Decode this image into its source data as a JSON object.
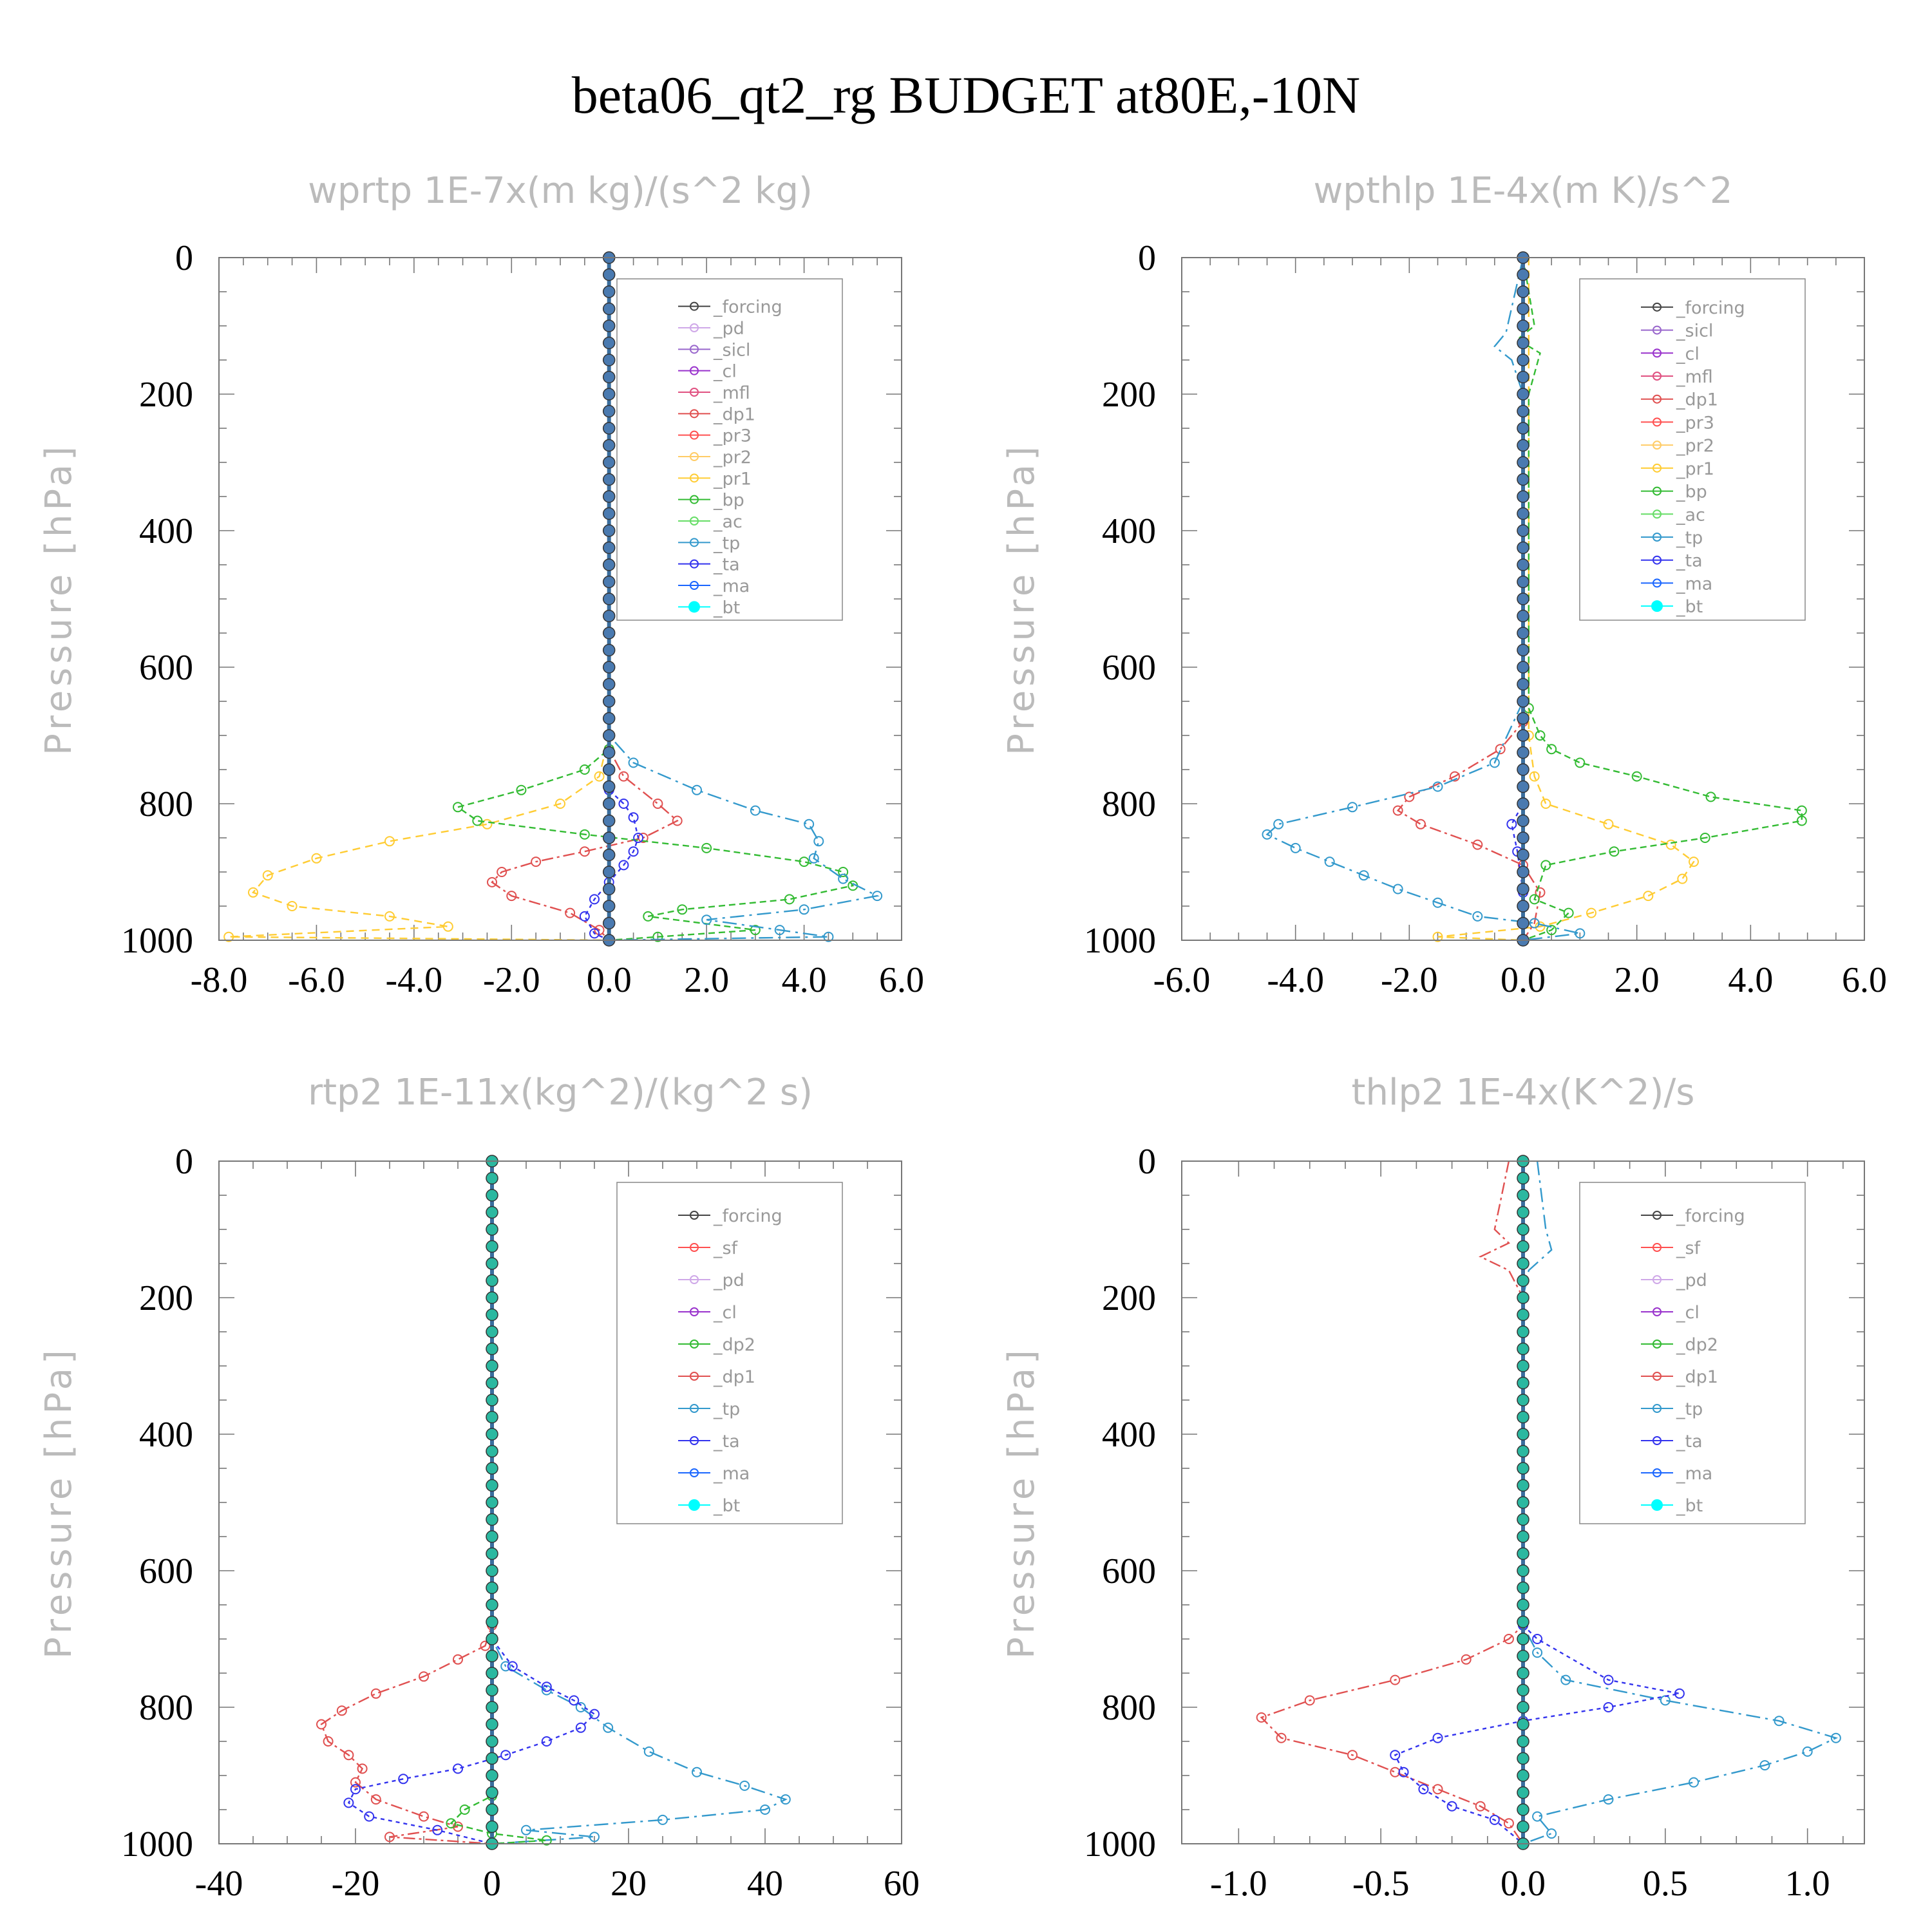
{
  "title": "beta06_qt2_rg  BUDGET at80E,-10N",
  "colors": {
    "forcing": "#444444",
    "pd": "#cfa8e8",
    "sicl": "#9966cc",
    "cl": "#9932cc",
    "mfl": "#e05080",
    "dp1": "#e05050",
    "pr3": "#ff5050",
    "pr2": "#ffcc66",
    "pr1": "#ffcc33",
    "bp": "#33bb33",
    "ac": "#66dd66",
    "tp": "#3399cc",
    "ta": "#3333ee",
    "ma": "#1a66ff",
    "bt": "#00ffff",
    "sf": "#ff5050",
    "dp2": "#33bb33"
  },
  "chart_data": [
    {
      "type": "line",
      "title": "wprtp   1E-7x(m kg)/(s^2 kg)",
      "ylabel": "Pressure [hPa]",
      "xlim": [
        -8,
        6
      ],
      "ylim": [
        0,
        1000
      ],
      "xticks": [
        "-8.0",
        "-6.0",
        "-4.0",
        "-2.0",
        "0.0",
        "2.0",
        "4.0",
        "6.0"
      ],
      "yticks": [
        "0",
        "200",
        "400",
        "600",
        "800",
        "1000"
      ],
      "legend": [
        "_forcing",
        "_pd",
        "_sicl",
        "_cl",
        "_mfl",
        "_dp1",
        "_pr3",
        "_pr2",
        "_pr1",
        "_bp",
        "_ac",
        "_tp",
        "_ta",
        "_ma",
        "_bt"
      ],
      "series": [
        {
          "name": "_pr1",
          "x": [
            0,
            0,
            -0.2,
            -1.0,
            -2.5,
            -4.5,
            -6.0,
            -7.0,
            -7.3,
            -6.5,
            -4.5,
            -3.3,
            -7.8,
            0
          ],
          "y": [
            0,
            700,
            760,
            800,
            830,
            855,
            880,
            905,
            930,
            950,
            965,
            980,
            995,
            1000
          ]
        },
        {
          "name": "_dp1",
          "x": [
            0,
            0,
            0.3,
            1.0,
            1.4,
            0.7,
            -0.5,
            -1.5,
            -2.2,
            -2.4,
            -2.0,
            -0.8,
            -0.2,
            0
          ],
          "y": [
            0,
            720,
            760,
            800,
            825,
            850,
            870,
            885,
            900,
            915,
            935,
            960,
            985,
            1000
          ]
        },
        {
          "name": "_bp",
          "x": [
            0,
            0,
            -0.5,
            -1.8,
            -3.1,
            -2.7,
            -0.5,
            2.0,
            4.0,
            4.8,
            5.0,
            3.7,
            1.5,
            0.8,
            3.0,
            1.0,
            0
          ],
          "y": [
            0,
            720,
            750,
            780,
            805,
            825,
            845,
            865,
            885,
            900,
            920,
            940,
            955,
            965,
            985,
            995,
            1000
          ]
        },
        {
          "name": "_tp",
          "x": [
            0,
            0,
            0.5,
            1.8,
            3.0,
            4.1,
            4.3,
            4.2,
            4.8,
            5.5,
            4.0,
            2.0,
            3.5,
            4.5,
            0
          ],
          "y": [
            0,
            700,
            740,
            780,
            810,
            830,
            855,
            880,
            910,
            935,
            955,
            970,
            985,
            995,
            1000
          ]
        },
        {
          "name": "_ta",
          "x": [
            0,
            0,
            0.3,
            0.5,
            0.6,
            0.5,
            0.3,
            0.0,
            -0.3,
            -0.5,
            -0.3,
            0
          ],
          "y": [
            0,
            780,
            800,
            820,
            850,
            870,
            890,
            915,
            940,
            965,
            990,
            1000
          ]
        },
        {
          "name": "_bt",
          "x": [
            0,
            0
          ],
          "y": [
            0,
            1000
          ]
        }
      ]
    },
    {
      "type": "line",
      "title": "wpthlp   1E-4x(m K)/s^2",
      "ylabel": "Pressure [hPa]",
      "xlim": [
        -6,
        6
      ],
      "ylim": [
        0,
        1000
      ],
      "xticks": [
        "-6.0",
        "-4.0",
        "-2.0",
        "0.0",
        "2.0",
        "4.0",
        "6.0"
      ],
      "yticks": [
        "0",
        "200",
        "400",
        "600",
        "800",
        "1000"
      ],
      "legend": [
        "_forcing",
        "_sicl",
        "_cl",
        "_mfl",
        "_dp1",
        "_pr3",
        "_pr2",
        "_pr1",
        "_bp",
        "_ac",
        "_tp",
        "_ta",
        "_ma",
        "_bt"
      ],
      "series": [
        {
          "name": "_pr1",
          "x": [
            0.1,
            0.1,
            0.2,
            0.4,
            1.5,
            2.6,
            3.0,
            2.8,
            2.2,
            1.2,
            0.3,
            -1.5,
            0
          ],
          "y": [
            0,
            700,
            760,
            800,
            830,
            860,
            885,
            910,
            935,
            960,
            980,
            995,
            1000
          ]
        },
        {
          "name": "_dp1",
          "x": [
            0,
            0,
            -0.4,
            -1.2,
            -2.0,
            -2.2,
            -1.8,
            -0.8,
            0.0,
            0.3,
            0.2,
            0
          ],
          "y": [
            0,
            680,
            720,
            760,
            790,
            810,
            830,
            860,
            890,
            930,
            975,
            1000
          ]
        },
        {
          "name": "_bp",
          "x": [
            0,
            0.2,
            -0.1,
            0.3,
            0.1,
            0.1,
            0.3,
            0.5,
            1.0,
            2.0,
            3.3,
            4.9,
            4.9,
            3.2,
            1.6,
            0.4,
            0.2,
            0.8,
            0.5,
            0
          ],
          "y": [
            0,
            100,
            120,
            140,
            200,
            660,
            700,
            720,
            740,
            760,
            790,
            810,
            825,
            850,
            870,
            890,
            940,
            960,
            985,
            1000
          ]
        },
        {
          "name": "_tp",
          "x": [
            0,
            -0.3,
            -0.5,
            -0.2,
            0,
            0,
            -0.5,
            -1.5,
            -3.0,
            -4.3,
            -4.5,
            -4.0,
            -3.4,
            -2.8,
            -2.2,
            -1.5,
            -0.8,
            0.2,
            1.0,
            0
          ],
          "y": [
            0,
            110,
            130,
            150,
            200,
            650,
            740,
            775,
            805,
            830,
            845,
            865,
            885,
            905,
            925,
            945,
            965,
            975,
            990,
            1000
          ]
        },
        {
          "name": "_ta",
          "x": [
            0,
            0,
            -0.2,
            -0.1,
            0,
            0
          ],
          "y": [
            0,
            800,
            830,
            870,
            930,
            1000
          ]
        },
        {
          "name": "_bt",
          "x": [
            0,
            0
          ],
          "y": [
            0,
            1000
          ]
        }
      ]
    },
    {
      "type": "line",
      "title": "rtp2   1E-11x(kg^2)/(kg^2 s)",
      "ylabel": "Pressure [hPa]",
      "xlim": [
        -40,
        60
      ],
      "ylim": [
        0,
        1000
      ],
      "xticks": [
        "-40",
        "-20",
        "0",
        "20",
        "40",
        "60"
      ],
      "yticks": [
        "0",
        "200",
        "400",
        "600",
        "800",
        "1000"
      ],
      "legend": [
        "_forcing",
        "_sf",
        "_pd",
        "_cl",
        "_dp2",
        "_dp1",
        "_tp",
        "_ta",
        "_ma",
        "_bt"
      ],
      "series": [
        {
          "name": "_dp1",
          "x": [
            0,
            0,
            -1,
            -5,
            -10,
            -17,
            -22,
            -25,
            -24,
            -21,
            -19,
            -20,
            -17,
            -10,
            -5,
            -15,
            0
          ],
          "y": [
            0,
            680,
            710,
            730,
            755,
            780,
            805,
            825,
            850,
            870,
            890,
            910,
            935,
            960,
            975,
            990,
            1000
          ]
        },
        {
          "name": "_tp",
          "x": [
            0,
            0,
            2,
            8,
            13,
            17,
            23,
            30,
            37,
            43,
            40,
            25,
            5,
            15,
            0
          ],
          "y": [
            0,
            700,
            740,
            775,
            800,
            830,
            865,
            895,
            915,
            935,
            950,
            965,
            980,
            990,
            1000
          ]
        },
        {
          "name": "_ta",
          "x": [
            0,
            0,
            3,
            8,
            12,
            15,
            13,
            8,
            2,
            -5,
            -13,
            -20,
            -21,
            -18,
            -8,
            0
          ],
          "y": [
            0,
            700,
            740,
            770,
            790,
            810,
            830,
            850,
            870,
            890,
            905,
            920,
            940,
            960,
            980,
            1000
          ]
        },
        {
          "name": "_dp2",
          "x": [
            0,
            0,
            -4,
            -6,
            0,
            8,
            0
          ],
          "y": [
            0,
            930,
            950,
            970,
            985,
            995,
            1000
          ]
        },
        {
          "name": "_bt",
          "x": [
            0,
            0
          ],
          "y": [
            0,
            1000
          ]
        }
      ]
    },
    {
      "type": "line",
      "title": "thlp2   1E-4x(K^2)/s",
      "ylabel": "Pressure [hPa]",
      "xlim": [
        -1.2,
        1.2
      ],
      "ylim": [
        0,
        1000
      ],
      "xticks": [
        "-1.0",
        "-0.5",
        "0.0",
        "0.5",
        "1.0"
      ],
      "yticks": [
        "0",
        "200",
        "400",
        "600",
        "800",
        "1000"
      ],
      "legend": [
        "_forcing",
        "_sf",
        "_pd",
        "_cl",
        "_dp2",
        "_dp1",
        "_tp",
        "_ta",
        "_ma",
        "_bt"
      ],
      "series": [
        {
          "name": "_dp1",
          "x": [
            -0.05,
            -0.1,
            -0.05,
            -0.15,
            -0.05,
            0,
            0,
            -0.05,
            -0.2,
            -0.45,
            -0.75,
            -0.92,
            -0.85,
            -0.6,
            -0.45,
            -0.3,
            -0.15,
            -0.05,
            0
          ],
          "y": [
            0,
            100,
            120,
            140,
            160,
            200,
            680,
            700,
            730,
            760,
            790,
            815,
            845,
            870,
            895,
            920,
            945,
            970,
            1000
          ]
        },
        {
          "name": "_tp",
          "x": [
            0.05,
            0.08,
            0.1,
            0.02,
            0,
            0,
            0.05,
            0.15,
            0.5,
            0.9,
            1.1,
            1.0,
            0.85,
            0.6,
            0.3,
            0.05,
            0.1,
            0
          ],
          "y": [
            0,
            100,
            130,
            160,
            200,
            680,
            720,
            760,
            790,
            820,
            845,
            865,
            885,
            910,
            935,
            960,
            985,
            1000
          ]
        },
        {
          "name": "_ta",
          "x": [
            0,
            0,
            0.05,
            0.3,
            0.55,
            0.3,
            0,
            -0.3,
            -0.45,
            -0.42,
            -0.35,
            -0.25,
            -0.1,
            0
          ],
          "y": [
            0,
            680,
            700,
            760,
            780,
            800,
            820,
            845,
            870,
            895,
            920,
            945,
            965,
            1000
          ]
        },
        {
          "name": "_bt",
          "x": [
            0,
            0
          ],
          "y": [
            0,
            1000
          ]
        }
      ]
    }
  ]
}
